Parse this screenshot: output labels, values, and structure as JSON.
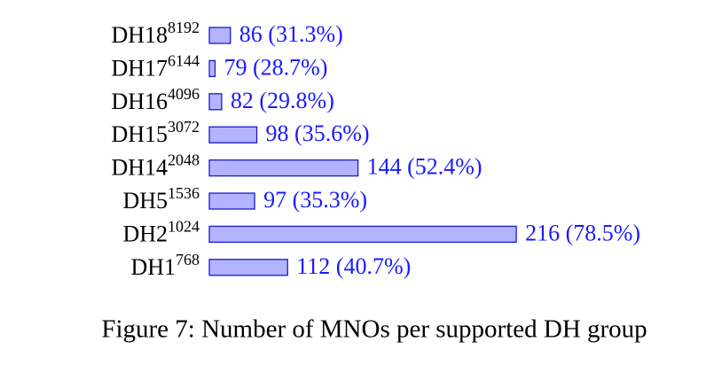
{
  "chart_data": {
    "type": "hbar",
    "title": "Figure 7: Number of MNOs per supported DH group",
    "categories": [
      {
        "label": "DH18",
        "sup": "8192"
      },
      {
        "label": "DH17",
        "sup": "6144"
      },
      {
        "label": "DH16",
        "sup": "4096"
      },
      {
        "label": "DH15",
        "sup": "3072"
      },
      {
        "label": "DH14",
        "sup": "2048"
      },
      {
        "label": "DH5",
        "sup": "1536"
      },
      {
        "label": "DH2",
        "sup": "1024"
      },
      {
        "label": "DH1",
        "sup": "768"
      }
    ],
    "values": [
      86,
      79,
      82,
      98,
      144,
      97,
      216,
      112
    ],
    "value_labels": [
      "86 (31.3%)",
      "79 (28.7%)",
      "82 (29.8%)",
      "98 (35.6%)",
      "144 (52.4%)",
      "97 (35.3%)",
      "216 (78.5%)",
      "112 (40.7%)"
    ],
    "color": "#b3b3ff",
    "edge_color": "#1a1acc",
    "label_color": "#1a1aff",
    "xlim": [
      76.4,
      220
    ]
  }
}
